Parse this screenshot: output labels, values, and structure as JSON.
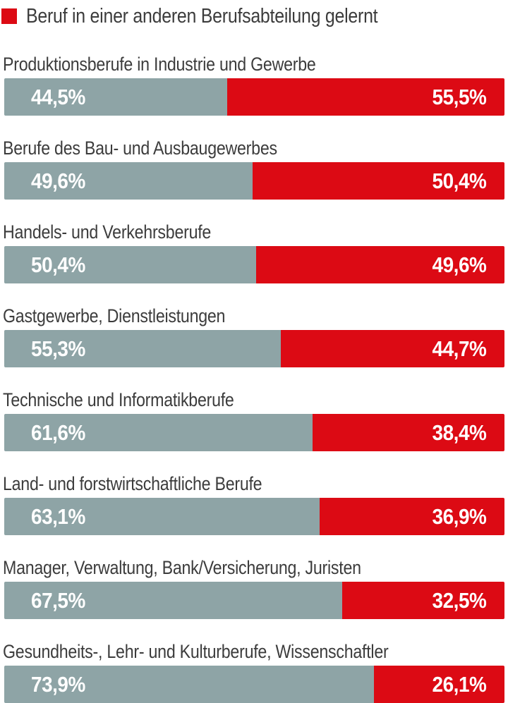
{
  "legend": {
    "label": "Beruf in einer anderen Berufsabteilung gelernt",
    "swatch_color": "#dc0a14"
  },
  "colors": {
    "gray_segment": "#8ea4a6",
    "red_segment": "#dc0a14",
    "label_text": "#3c3c3c",
    "value_text": "#ffffff",
    "background": "#ffffff"
  },
  "chart_data": {
    "type": "bar",
    "orientation": "horizontal",
    "stacked": true,
    "unit": "%",
    "xlim": [
      0,
      100
    ],
    "legend_position": "top",
    "legend": [
      {
        "label": "Beruf in einer anderen Berufsabteilung gelernt",
        "color": "#dc0a14"
      }
    ],
    "categories": [
      "Produktionsberufe in Industrie und Gewerbe",
      "Berufe des Bau- und Ausbaugewerbes",
      "Handels- und Verkehrsberufe",
      "Gastgewerbe, Dienstleistungen",
      "Technische und Informatikberufe",
      "Land- und forstwirtschaftliche Berufe",
      "Manager, Verwaltung, Bank/Versicherung, Juristen",
      "Gesundheits-, Lehr- und Kulturberufe, Wissenschaftler"
    ],
    "series": [
      {
        "name": "",
        "color": "#8ea4a6",
        "values": [
          44.5,
          49.6,
          50.4,
          55.3,
          61.6,
          63.1,
          67.5,
          73.9
        ]
      },
      {
        "name": "Beruf in einer anderen Berufsabteilung gelernt",
        "color": "#dc0a14",
        "values": [
          55.5,
          50.4,
          49.6,
          44.7,
          38.4,
          36.9,
          32.5,
          26.1
        ]
      }
    ],
    "rows": [
      {
        "category": "Produktionsberufe in Industrie und Gewerbe",
        "gray_value": 44.5,
        "red_value": 55.5,
        "gray_label": "44,5%",
        "red_label": "55,5%"
      },
      {
        "category": "Berufe des Bau- und Ausbaugewerbes",
        "gray_value": 49.6,
        "red_value": 50.4,
        "gray_label": "49,6%",
        "red_label": "50,4%"
      },
      {
        "category": "Handels- und Verkehrsberufe",
        "gray_value": 50.4,
        "red_value": 49.6,
        "gray_label": "50,4%",
        "red_label": "49,6%"
      },
      {
        "category": "Gastgewerbe, Dienstleistungen",
        "gray_value": 55.3,
        "red_value": 44.7,
        "gray_label": "55,3%",
        "red_label": "44,7%"
      },
      {
        "category": "Technische und Informatikberufe",
        "gray_value": 61.6,
        "red_value": 38.4,
        "gray_label": "61,6%",
        "red_label": "38,4%"
      },
      {
        "category": "Land- und forstwirtschaftliche Berufe",
        "gray_value": 63.1,
        "red_value": 36.9,
        "gray_label": "63,1%",
        "red_label": "36,9%"
      },
      {
        "category": "Manager, Verwaltung, Bank/Versicherung, Juristen",
        "gray_value": 67.5,
        "red_value": 32.5,
        "gray_label": "67,5%",
        "red_label": "32,5%"
      },
      {
        "category": "Gesundheits-, Lehr- und Kulturberufe, Wissenschaftler",
        "gray_value": 73.9,
        "red_value": 26.1,
        "gray_label": "73,9%",
        "red_label": "26,1%"
      }
    ]
  }
}
